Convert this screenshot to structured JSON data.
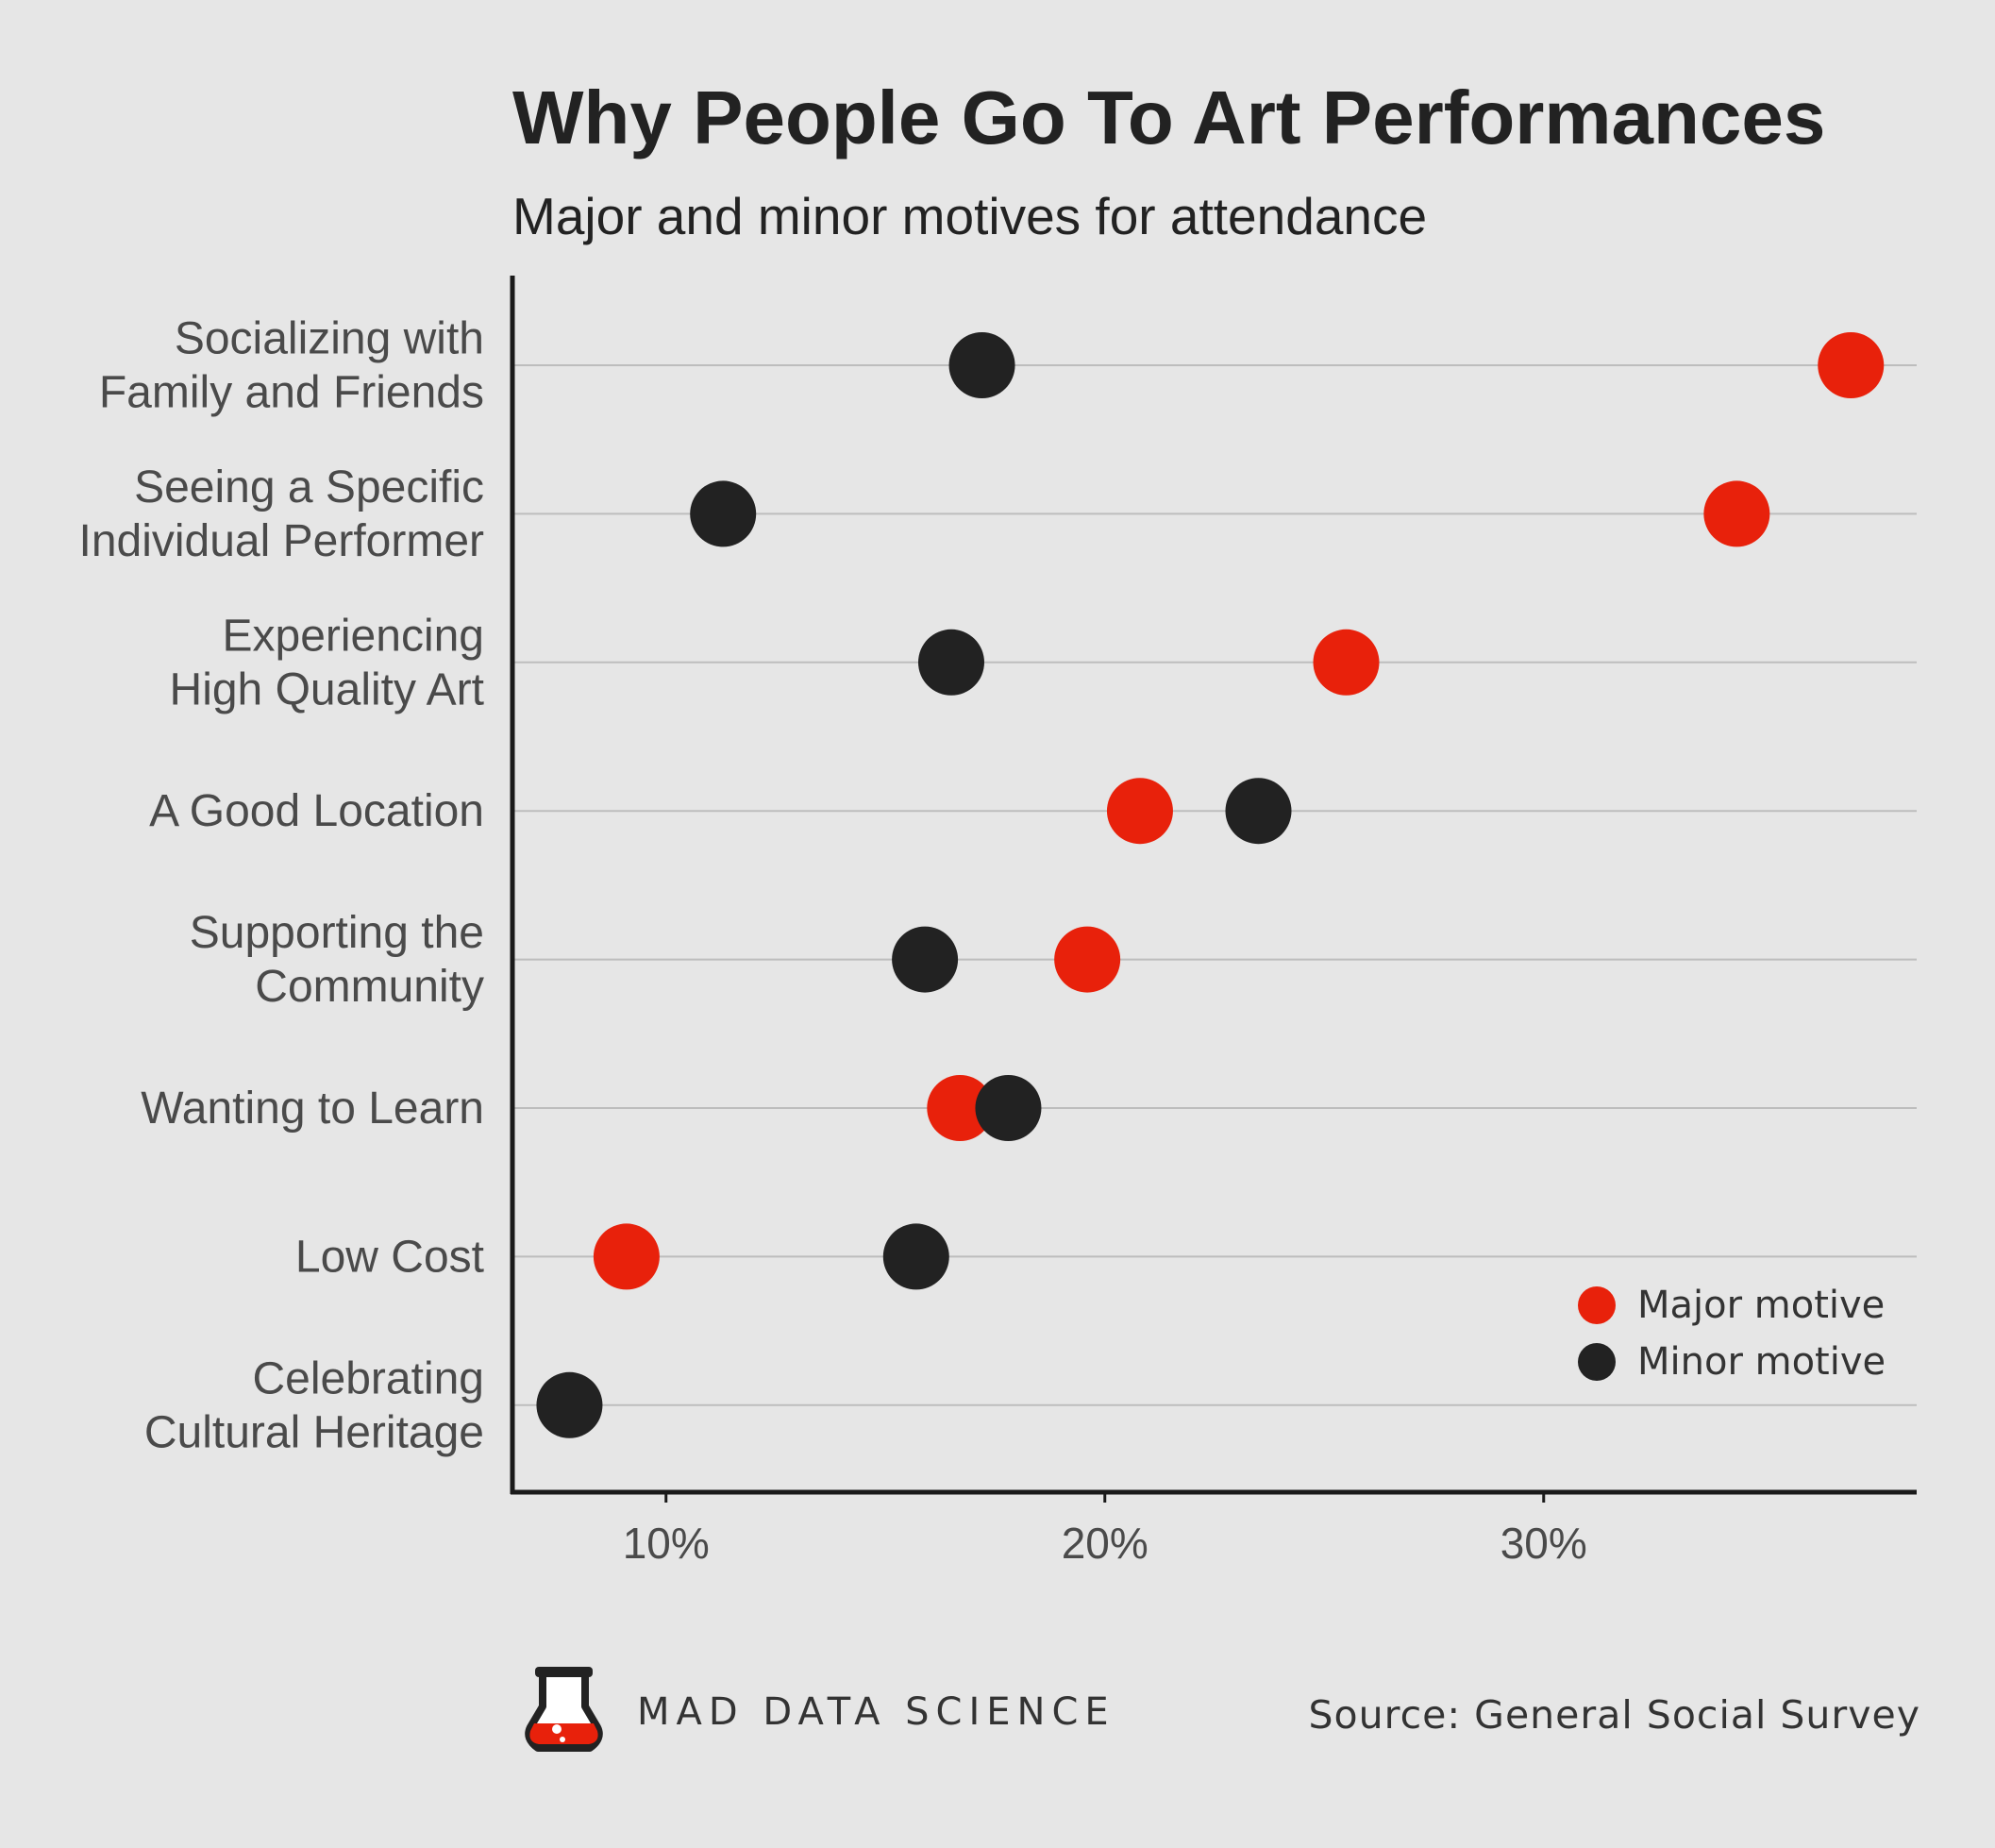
{
  "chart_data": {
    "type": "scatter",
    "title": "Why People Go To Art Performances",
    "subtitle": "Major and minor motives for attendance",
    "categories": [
      [
        "Socializing with",
        "Family and Friends"
      ],
      [
        "Seeing a Specific",
        "Individual Performer"
      ],
      [
        "Experiencing",
        "High Quality Art"
      ],
      [
        "A Good Location"
      ],
      [
        "Supporting the",
        "Community"
      ],
      [
        "Wanting to Learn"
      ],
      [
        "Low Cost"
      ],
      [
        "Celebrating",
        "Cultural Heritage"
      ]
    ],
    "series": [
      {
        "name": "Major motive",
        "color": "#e8210b",
        "values": [
          37.0,
          34.4,
          25.5,
          20.8,
          19.6,
          16.7,
          9.1,
          null
        ]
      },
      {
        "name": "Minor motive",
        "color": "#222222",
        "values": [
          17.2,
          11.3,
          16.5,
          23.5,
          15.9,
          17.8,
          15.7,
          7.8
        ]
      }
    ],
    "xlim": [
      6.5,
      38.5
    ],
    "x_ticks": [
      10,
      20,
      30
    ],
    "x_tick_labels": [
      "10%",
      "20%",
      "30%"
    ],
    "xlabel": "",
    "ylabel": "",
    "grid": "horizontal",
    "legend_position": "bottom-right"
  },
  "legend": [
    {
      "label": "Major motive",
      "color": "#e8210b"
    },
    {
      "label": "Minor motive",
      "color": "#222222"
    }
  ],
  "footer": {
    "brand": "MAD DATA SCIENCE",
    "logo_icon": "flask-icon",
    "source": "Source: General Social Survey"
  }
}
